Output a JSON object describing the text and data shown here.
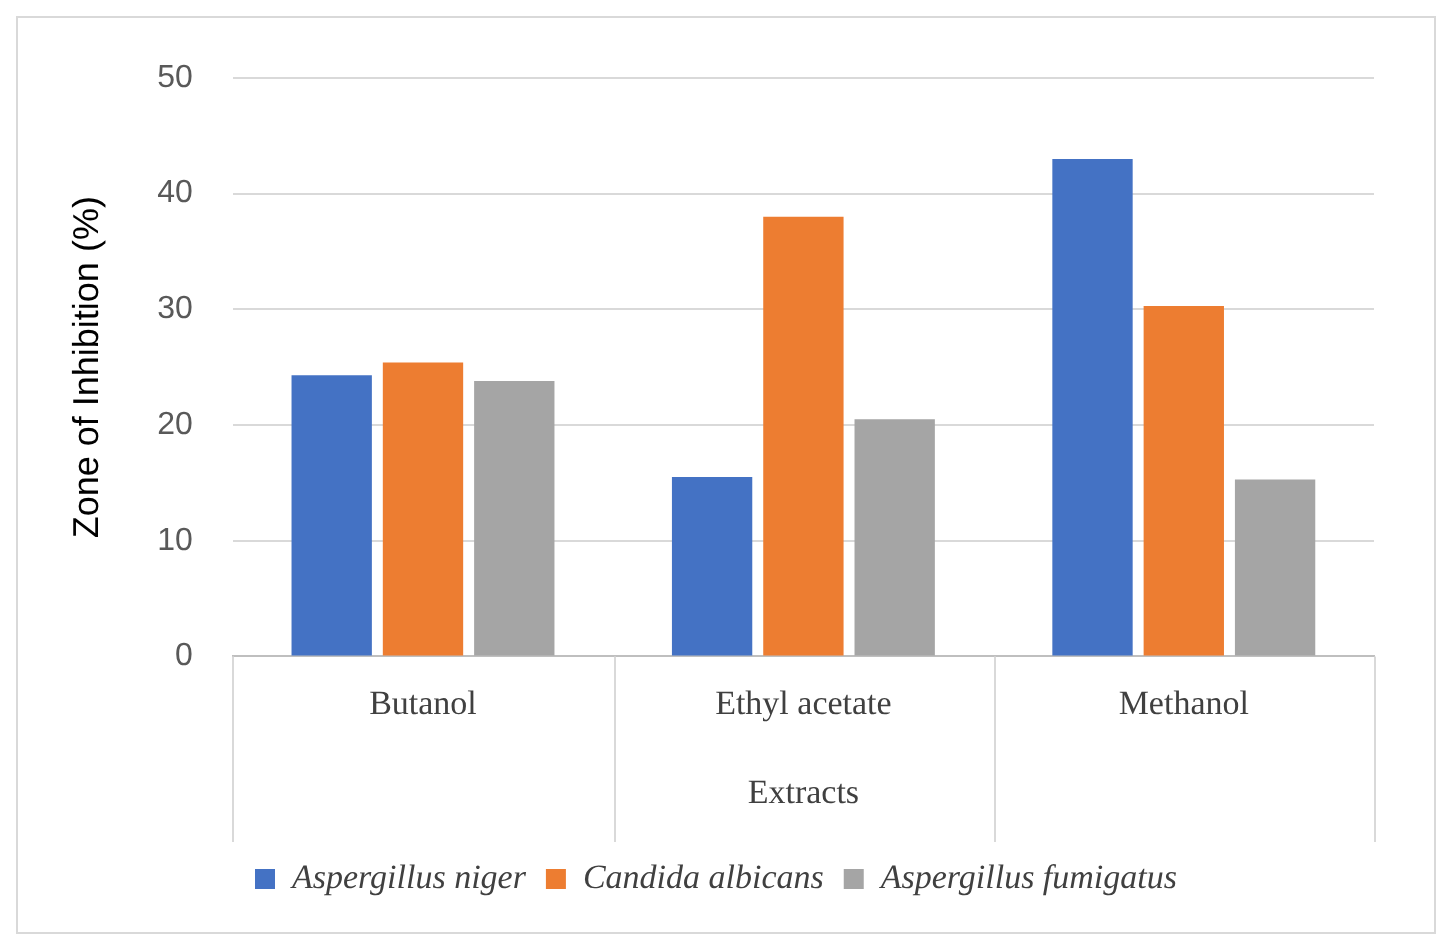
{
  "chart_data": {
    "type": "bar",
    "xlabel": "Extracts",
    "ylabel": "Zone of Inhibition (%)",
    "categories": [
      "Butanol",
      "Ethyl acetate",
      "Methanol"
    ],
    "series": [
      {
        "name": "Aspergillus niger",
        "color": "#4472c4",
        "values": [
          24.3,
          15.5,
          43
        ]
      },
      {
        "name": "Candida albicans",
        "color": "#ed7d31",
        "values": [
          25.4,
          38,
          30.3
        ]
      },
      {
        "name": "Aspergillus fumigatus",
        "color": "#a5a5a5",
        "values": [
          23.8,
          20.5,
          15.3
        ]
      }
    ],
    "ylim": [
      0,
      50
    ],
    "yticks": [
      0,
      10,
      20,
      30,
      40,
      50
    ],
    "grid": "y",
    "legend": "bottom"
  }
}
